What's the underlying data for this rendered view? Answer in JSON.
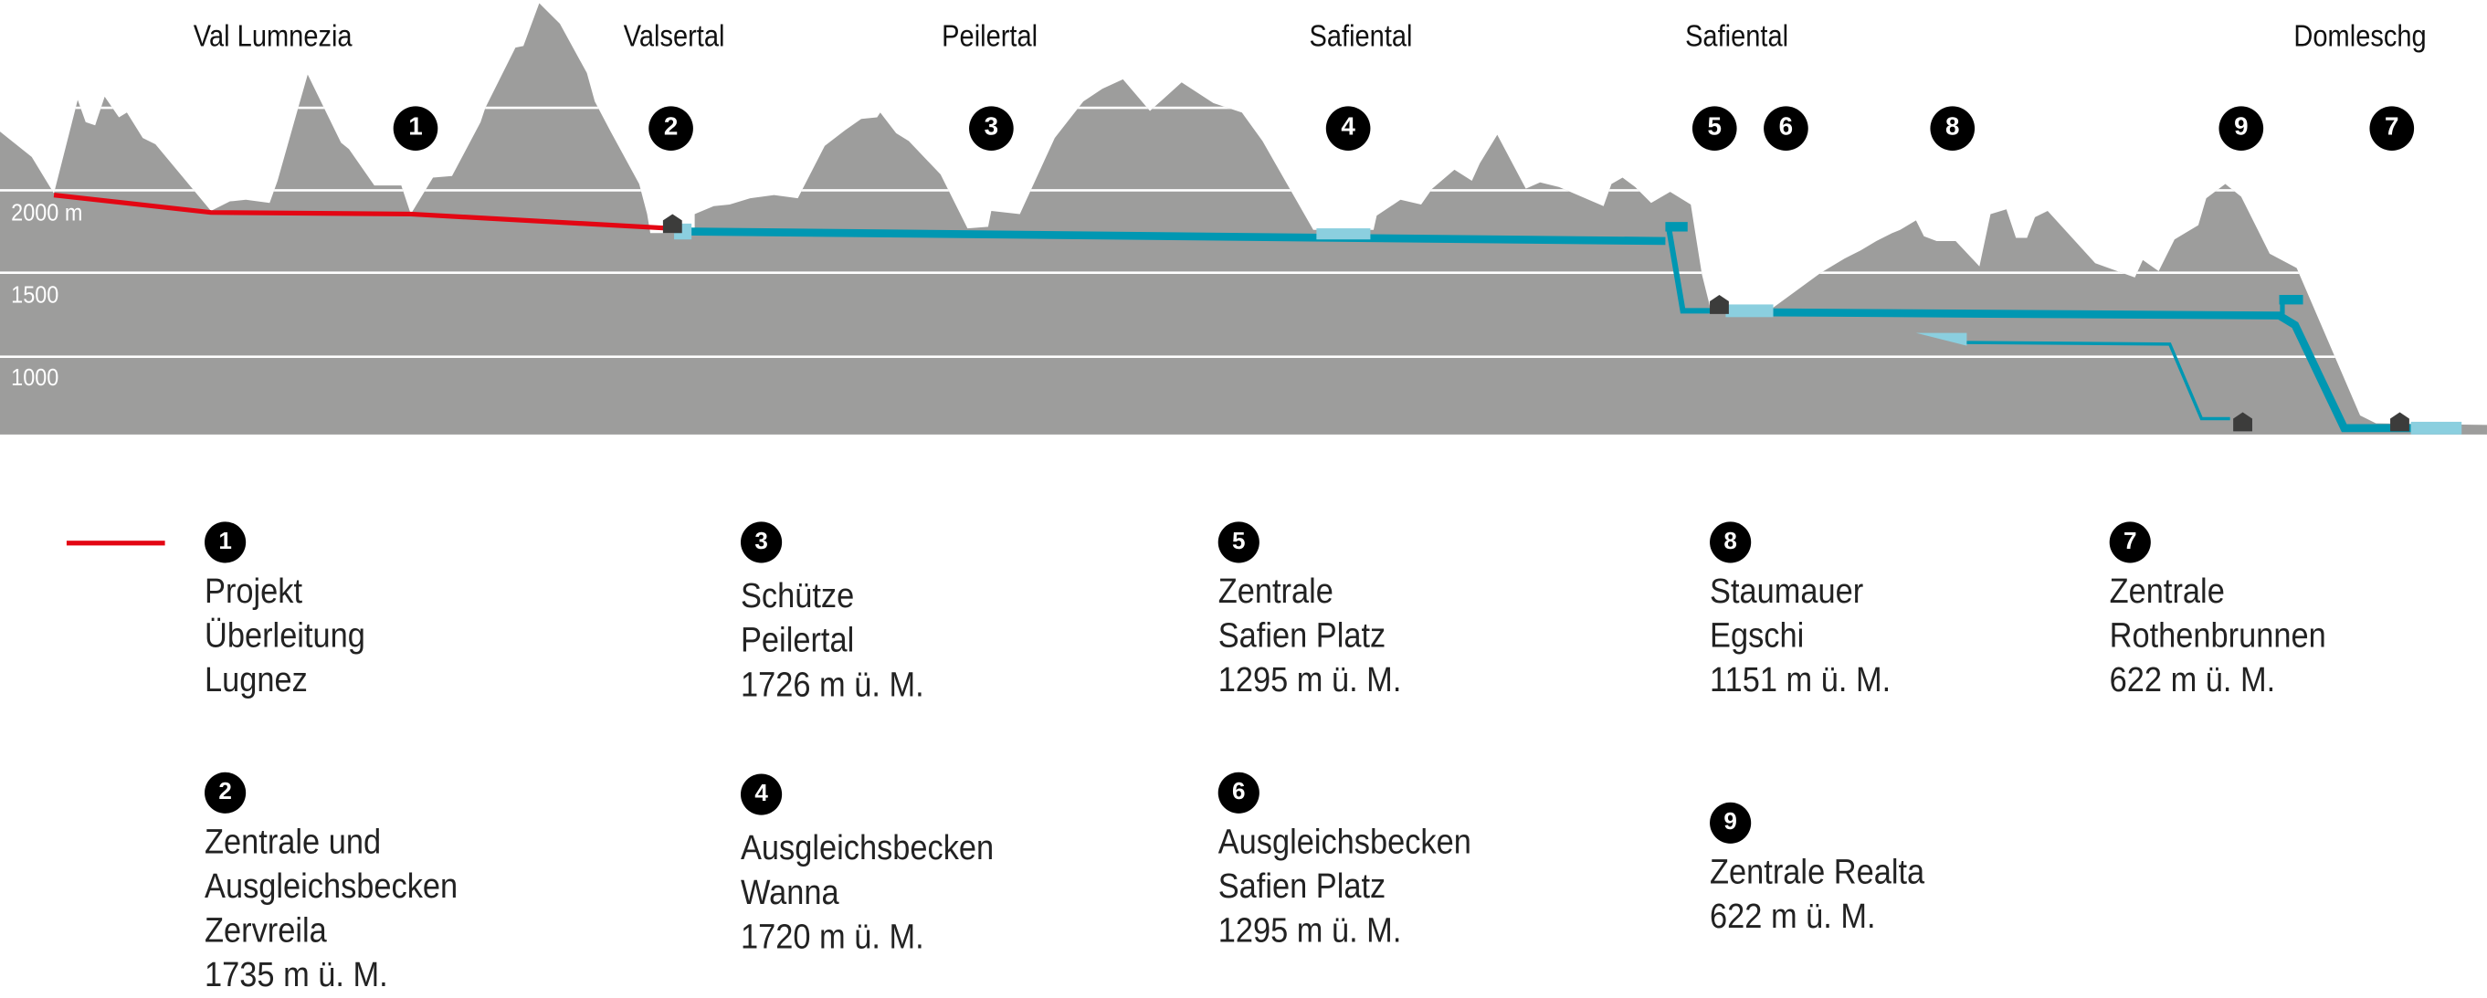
{
  "colors": {
    "terrain": "#9d9d9c",
    "gridline": "#ffffff",
    "project_line": "#e30613",
    "pipeline": "#0097b2",
    "reservoir": "#8bcfdf",
    "powerhouse": "#3c3c3b",
    "badge": "#000000"
  },
  "valleys": [
    "Val Lumnezia",
    "Valsertal",
    "Peilertal",
    "Safiental",
    "Safiental",
    "Domleschg"
  ],
  "elevation_labels": [
    "2000 m",
    "1500",
    "1000"
  ],
  "profile_badges": [
    "1",
    "2",
    "3",
    "4",
    "5",
    "6",
    "8",
    "9",
    "7"
  ],
  "legend": {
    "project_line_color": "#e30613",
    "items": [
      {
        "number": "1",
        "lines": [
          "Projekt",
          "Überleitung",
          "Lugnez"
        ]
      },
      {
        "number": "2",
        "lines": [
          "Zentrale und",
          "Ausgleichsbecken",
          "Zervreila",
          "1735 m ü. M."
        ]
      },
      {
        "number": "3",
        "lines": [
          "Schütze",
          "Peilertal",
          "1726 m ü. M."
        ]
      },
      {
        "number": "4",
        "lines": [
          "Ausgleichsbecken",
          "Wanna",
          "1720 m ü. M."
        ]
      },
      {
        "number": "5",
        "lines": [
          "Zentrale",
          "Safien Platz",
          "1295 m ü. M."
        ]
      },
      {
        "number": "6",
        "lines": [
          "Ausgleichsbecken",
          "Safien Platz",
          "1295 m ü. M."
        ]
      },
      {
        "number": "8",
        "lines": [
          "Staumauer",
          "Egschi",
          "1151 m ü. M."
        ]
      },
      {
        "number": "9",
        "lines": [
          "Zentrale Realta",
          "622 m ü. M."
        ]
      },
      {
        "number": "7",
        "lines": [
          "Zentrale",
          "Rothenbrunnen",
          "622 m ü. M."
        ]
      }
    ]
  }
}
